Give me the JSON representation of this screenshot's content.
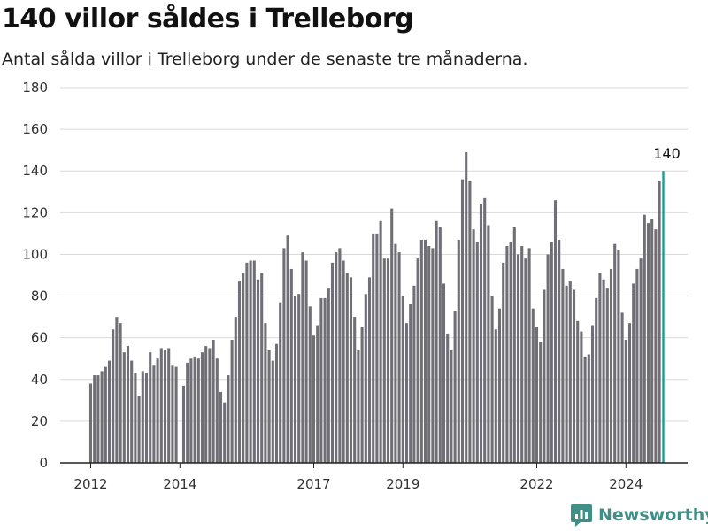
{
  "header": {
    "title": "140 villor såldes i Trelleborg",
    "subtitle": "Antal sålda villor i Trelleborg under de senaste tre månaderna."
  },
  "logo": {
    "text": "Newsworthy",
    "icon": "bar-chart-logo-icon"
  },
  "colors": {
    "bar": "#706f75",
    "highlight": "#1a9e92",
    "grid": "#d9d9d9",
    "axis": "#222222",
    "brand": "#3f8f86"
  },
  "chart_data": {
    "type": "bar",
    "title": "140 villor såldes i Trelleborg",
    "subtitle": "Antal sålda villor i Trelleborg under de senaste tre månaderna.",
    "xlabel": "",
    "ylabel": "",
    "ylim": [
      0,
      180
    ],
    "yticks": [
      0,
      20,
      40,
      60,
      80,
      100,
      120,
      140,
      160,
      180
    ],
    "xticks": [
      "2012",
      "2014",
      "2017",
      "2019",
      "2022",
      "2024"
    ],
    "grid": true,
    "x_start": "2012-01",
    "x_step": "1 month",
    "annotation": {
      "label": "140",
      "x": "2024-12",
      "value": 140
    },
    "series": [
      {
        "values": [
          38,
          42,
          42,
          44,
          46,
          49,
          64,
          70,
          67,
          53,
          56,
          49,
          43,
          32,
          44,
          43,
          53,
          47,
          50,
          55,
          54,
          55,
          47,
          46,
          null,
          37,
          48,
          50,
          51,
          50,
          53,
          56,
          55,
          59,
          50,
          34,
          29,
          42,
          59,
          70,
          87,
          91,
          96,
          97,
          97,
          88,
          91,
          67,
          54,
          49,
          57,
          77,
          103,
          109,
          93,
          80,
          81,
          101,
          97,
          75,
          61,
          66,
          79,
          79,
          84,
          96,
          101,
          103,
          97,
          91,
          89,
          70,
          54,
          65,
          81,
          89,
          110,
          110,
          116,
          98,
          98,
          122,
          105,
          101,
          80,
          67,
          76,
          85,
          98,
          107,
          107,
          104,
          103,
          116,
          113,
          86,
          62,
          54,
          73,
          107,
          136,
          149,
          135,
          112,
          106,
          124,
          127,
          114,
          80,
          64,
          74,
          96,
          104,
          106,
          113,
          100,
          104,
          98,
          103,
          74,
          65,
          58,
          83,
          100,
          106,
          126,
          107,
          93,
          85,
          87,
          83,
          68,
          63,
          51,
          52,
          66,
          79,
          91,
          88,
          84,
          93,
          105,
          102,
          72,
          59,
          67,
          86,
          93,
          98,
          119,
          115,
          117,
          112,
          135,
          140
        ]
      }
    ]
  }
}
